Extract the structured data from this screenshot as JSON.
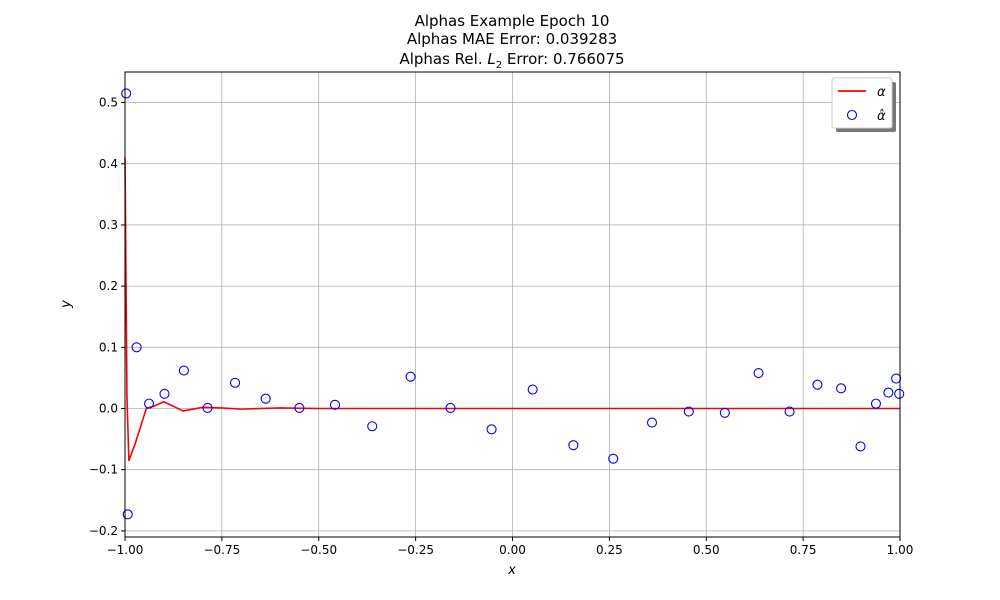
{
  "chart_data": {
    "type": "line",
    "title_lines": [
      "Alphas Example Epoch 10",
      "Alphas MAE Error: 0.039283",
      "Alphas Rel. L2 Error: 0.766075"
    ],
    "title_parts": {
      "line3_prefix": "Alphas Rel. ",
      "line3_var": "L",
      "line3_sub": "2",
      "line3_suffix": " Error: 0.766075"
    },
    "xlabel": "x",
    "ylabel": "y",
    "xlim": [
      -1.0,
      1.0
    ],
    "ylim": [
      -0.21,
      0.55
    ],
    "xticks": [
      -1.0,
      -0.75,
      -0.5,
      -0.25,
      0.0,
      0.25,
      0.5,
      0.75,
      1.0
    ],
    "xtick_labels": [
      "−1.00",
      "−0.75",
      "−0.50",
      "−0.25",
      "0.00",
      "0.25",
      "0.50",
      "0.75",
      "1.00"
    ],
    "yticks": [
      -0.2,
      -0.1,
      0.0,
      0.1,
      0.2,
      0.3,
      0.4,
      0.5
    ],
    "ytick_labels": [
      "−0.2",
      "−0.1",
      "0.0",
      "0.1",
      "0.2",
      "0.3",
      "0.4",
      "0.5"
    ],
    "grid": true,
    "legend_position": "top-right",
    "series": [
      {
        "name": "α",
        "kind": "line",
        "color": "#ff0000",
        "x": [
          -1.0,
          -0.995,
          -0.99,
          -0.975,
          -0.945,
          -0.925,
          -0.9,
          -0.85,
          -0.8,
          -0.75,
          -0.7,
          -0.6,
          -0.5,
          -0.4,
          0.0,
          0.5,
          1.0
        ],
        "y": [
          0.41,
          0.02,
          -0.085,
          -0.06,
          0.0,
          0.004,
          0.011,
          -0.004,
          0.002,
          0.001,
          -0.001,
          0.001,
          0.0,
          0.0,
          0.0,
          0.0,
          0.0
        ]
      },
      {
        "name": "α̂",
        "kind": "scatter",
        "color": "#0000ff",
        "x": [
          -0.997,
          -0.993,
          -0.97,
          -0.938,
          -0.898,
          -0.848,
          -0.787,
          -0.716,
          -0.637,
          -0.55,
          -0.458,
          -0.362,
          -0.263,
          -0.16,
          -0.054,
          0.052,
          0.157,
          0.26,
          0.36,
          0.455,
          0.548,
          0.635,
          0.715,
          0.787,
          0.848,
          0.898,
          0.938,
          0.97,
          0.99,
          0.998
        ],
        "y": [
          0.515,
          -0.173,
          0.1,
          0.008,
          0.024,
          0.062,
          0.001,
          0.042,
          0.016,
          0.001,
          0.006,
          -0.029,
          0.052,
          0.001,
          -0.034,
          0.031,
          -0.06,
          -0.082,
          -0.023,
          -0.005,
          -0.007,
          0.058,
          -0.005,
          0.039,
          0.033,
          -0.062,
          0.008,
          0.026,
          0.049,
          0.024
        ]
      }
    ]
  }
}
